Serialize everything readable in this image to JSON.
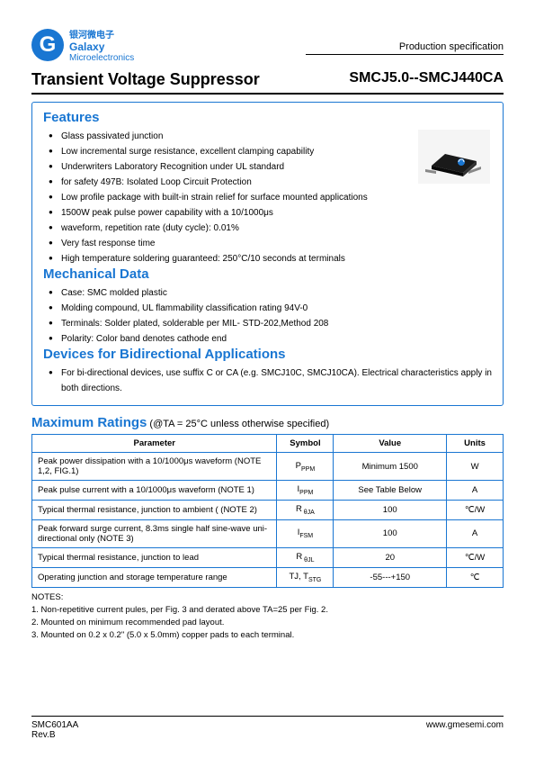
{
  "header": {
    "logo_letter": "G",
    "logo_cn": "银河微电子",
    "logo_en1": "Galaxy",
    "logo_en2": "Microelectronics",
    "prodspec": "Production specification"
  },
  "title": {
    "left": "Transient Voltage Suppressor",
    "right": "SMCJ5.0--SMCJ440CA"
  },
  "features": {
    "heading": "Features",
    "items": [
      "Glass passivated junction",
      "Low incremental surge resistance, excellent clamping capability",
      "Underwriters Laboratory Recognition under UL standard",
      "for safety 497B: Isolated Loop Circuit Protection",
      "Low profile package with built-in strain relief for surface mounted applications",
      "1500W peak pulse power capability with a 10/1000μs",
      "waveform, repetition rate (duty cycle): 0.01%",
      "Very fast response time",
      "High temperature soldering guaranteed: 250°C/10 seconds at terminals"
    ]
  },
  "mechanical": {
    "heading": "Mechanical Data",
    "items": [
      "Case: SMC molded plastic",
      "Molding compound, UL flammability classification rating 94V-0",
      "Terminals: Solder plated, solderable per MIL- STD-202,Method 208",
      "Polarity: Color band denotes cathode end"
    ]
  },
  "bidi": {
    "heading": "Devices for Bidirectional Applications",
    "text": "For bi-directional devices, use suffix C or CA (e.g. SMCJ10C, SMCJ10CA). Electrical characteristics apply in both directions."
  },
  "ratings": {
    "heading": "Maximum Ratings",
    "condition": " (@TA = 25°C unless otherwise specified)",
    "columns": [
      "Parameter",
      "Symbol",
      "Value",
      "Units"
    ],
    "rows": [
      {
        "param": "Peak power dissipation with a 10/1000μs waveform (NOTE 1,2, FIG.1)",
        "symbol": "P",
        "sub": "PPM",
        "value": "Minimum 1500",
        "units": "W"
      },
      {
        "param": "Peak pulse current with a 10/1000μs waveform (NOTE 1)",
        "symbol": "I",
        "sub": "PPM",
        "value": "See Table Below",
        "units": "A"
      },
      {
        "param": "Typical thermal resistance, junction to ambient ( (NOTE 2)",
        "symbol": "R",
        "sub": " θJA",
        "value": "100",
        "units": "℃/W"
      },
      {
        "param": "Peak forward surge current, 8.3ms single half sine-wave uni-directional only (NOTE 3)",
        "symbol": "I",
        "sub": "FSM",
        "value": "100",
        "units": "A"
      },
      {
        "param": "Typical thermal resistance, junction to lead",
        "symbol": "R",
        "sub": " θJL",
        "value": "20",
        "units": "℃/W"
      },
      {
        "param": "Operating junction and storage temperature range",
        "symbol": "TJ, T",
        "sub": "STG",
        "value": "-55---+150",
        "units": "℃"
      }
    ]
  },
  "notes": {
    "heading": "NOTES:",
    "items": [
      "1. Non-repetitive current pules, per Fig. 3 and derated above TA=25 per Fig. 2.",
      "2. Mounted on minimum recommended pad layout.",
      "3. Mounted on 0.2 x 0.2\" (5.0 x 5.0mm) copper pads to each terminal."
    ]
  },
  "footer": {
    "left1": "SMC601AA",
    "left2": "Rev.B",
    "right": "www.gmesemi.com"
  },
  "colors": {
    "accent": "#1976d2"
  }
}
